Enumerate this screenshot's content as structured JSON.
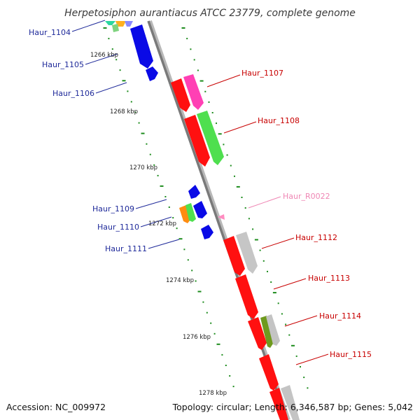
{
  "title": "Herpetosiphon aurantiacus ATCC 23779, complete genome",
  "footer": {
    "accession": "Accession: NC_009972",
    "summary": "Topology: circular; Length: 6,346,587 bp; Genes: 5,042"
  },
  "ticks": [
    "1266 kbp",
    "1268 kbp",
    "1270 kbp",
    "1272 kbp",
    "1274 kbp",
    "1276 kbp",
    "1278 kbp"
  ],
  "gene_labels": {
    "left": [
      "Haur_1104",
      "Haur_1105",
      "Haur_1106",
      "Haur_1109",
      "Haur_1110",
      "Haur_1111"
    ],
    "right": [
      "Haur_1107",
      "Haur_1108",
      "Haur_R0022",
      "Haur_1112",
      "Haur_1113",
      "Haur_1114",
      "Haur_1115"
    ]
  },
  "colors": {
    "backbone": "#8c8c8c",
    "blue_genes": "#0a0ae6",
    "red_genes": "#ff1010",
    "magenta": "#ff40b4",
    "green": "#50e050",
    "gray": "#c4c4c4",
    "olive": "#6f9a1e",
    "orange": "#ff8c10",
    "rna": "#ff8cc0",
    "tick_dots": "#1d8c1d"
  }
}
